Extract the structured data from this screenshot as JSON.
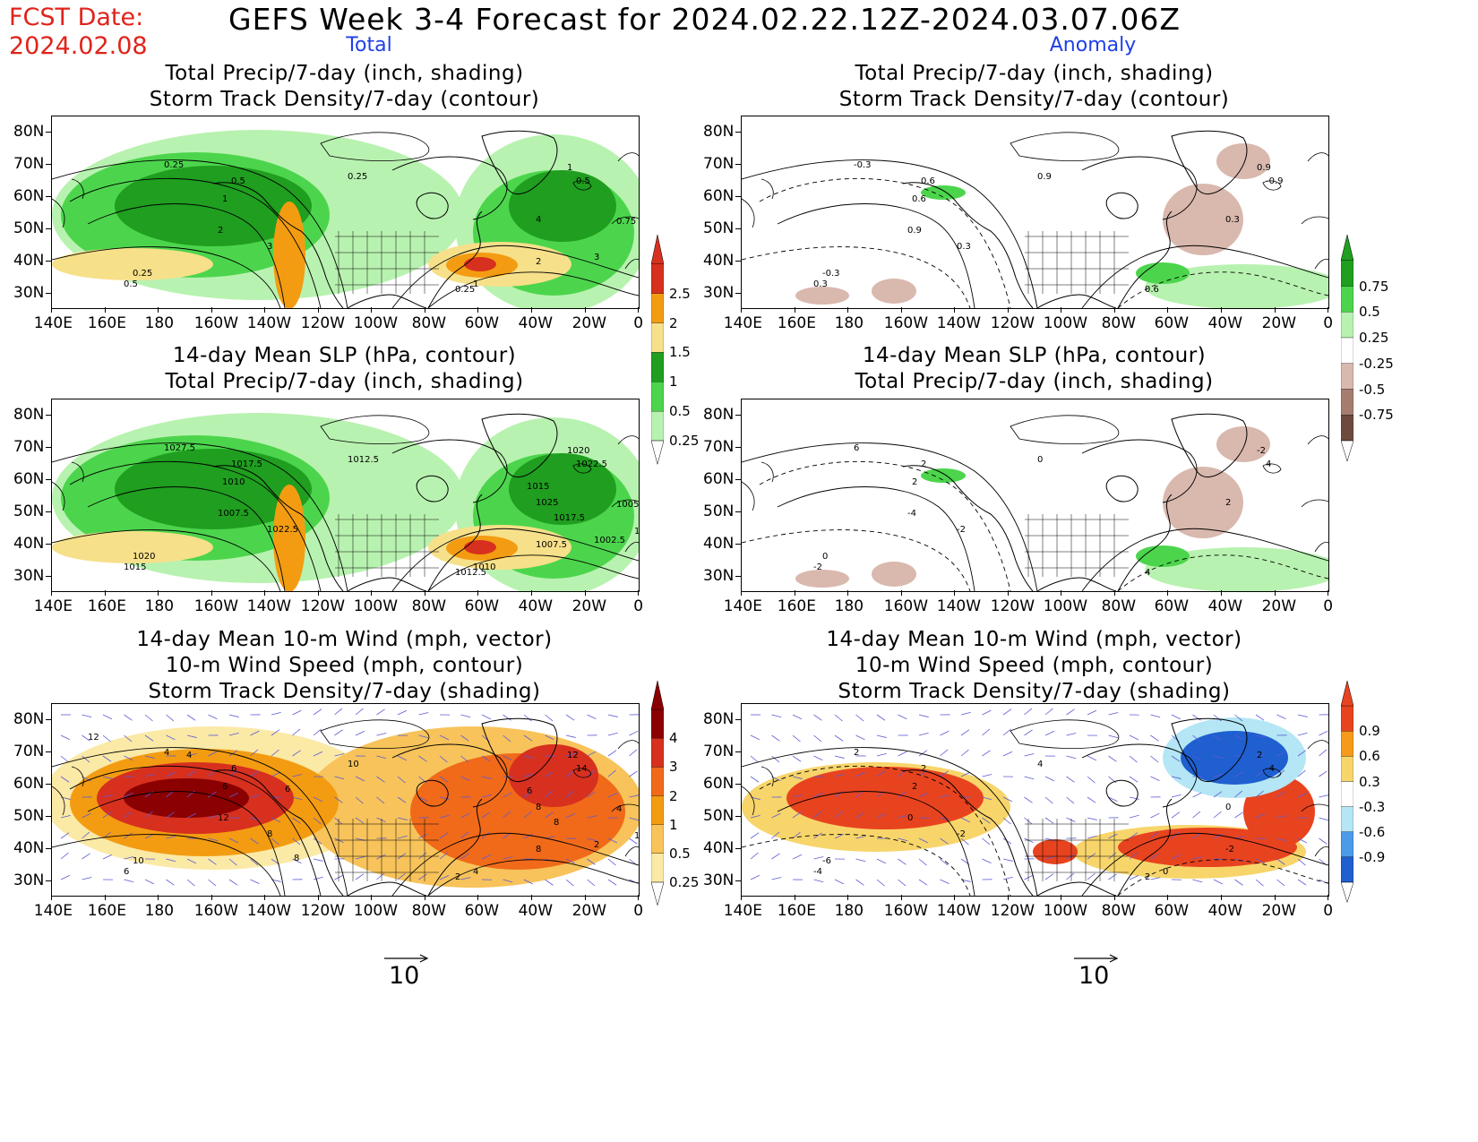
{
  "header": {
    "fcst_date_label": "FCST Date:",
    "fcst_date_value": "2024.02.08",
    "title": "GEFS Week 3-4 Forecast for 2024.02.22.12Z-2024.03.07.06Z",
    "col_left": "Total",
    "col_right": "Anomaly"
  },
  "panels": {
    "p1": {
      "line1": "Total Precip/7-day (inch, shading)",
      "line2": "Storm Track Density/7-day (contour)"
    },
    "p2": {
      "line1": "Total Precip/7-day (inch, shading)",
      "line2": "Storm Track Density/7-day (contour)"
    },
    "p3": {
      "line1": "14-day Mean SLP (hPa, contour)",
      "line2": "Total Precip/7-day (inch, shading)"
    },
    "p4": {
      "line1": "14-day Mean SLP (hPa, contour)",
      "line2": "Total Precip/7-day (inch, shading)"
    },
    "p5": {
      "line1": "14-day Mean 10-m Wind (mph, vector)",
      "line2": "10-m Wind Speed (mph, contour)",
      "line3": "Storm Track Density/7-day (shading)"
    },
    "p6": {
      "line1": "14-day Mean 10-m Wind (mph, vector)",
      "line2": "10-m Wind Speed (mph, contour)",
      "line3": "Storm Track Density/7-day (shading)"
    }
  },
  "axes": {
    "lat_labels": [
      "80N",
      "70N",
      "60N",
      "50N",
      "40N",
      "30N"
    ],
    "lon_labels": [
      "140E",
      "160E",
      "180",
      "160W",
      "140W",
      "120W",
      "100W",
      "80W",
      "60W",
      "40W",
      "20W",
      "0"
    ]
  },
  "colorbars": {
    "precip_total": {
      "labels": [
        "2.5",
        "2",
        "1.5",
        "1",
        "0.5",
        "0.25"
      ],
      "colors": [
        "#d7301f",
        "#f39c12",
        "#f7e08a",
        "#1f9e1f",
        "#4cd54c",
        "#b8f2b0"
      ]
    },
    "precip_anom": {
      "labels": [
        "0.75",
        "0.5",
        "0.25",
        "-0.25",
        "-0.5",
        "-0.75"
      ],
      "colors": [
        "#1f9e1f",
        "#4cd54c",
        "#b8f2b0",
        "#ffffff",
        "#d9b8ae",
        "#a67c6e",
        "#6e4a3e"
      ]
    },
    "storm_total": {
      "labels": [
        "4",
        "3",
        "2",
        "1",
        "0.5",
        "0.25"
      ],
      "colors": [
        "#8b0000",
        "#d7301f",
        "#f06a1a",
        "#f39c12",
        "#f7c35a",
        "#fbe9a6"
      ]
    },
    "storm_anom": {
      "labels": [
        "0.9",
        "0.6",
        "0.3",
        "-0.3",
        "-0.6",
        "-0.9"
      ],
      "colors": [
        "#e8431f",
        "#f59a1a",
        "#f7d56a",
        "#ffffff",
        "#b4e6f5",
        "#4b9be8",
        "#1f5fd0"
      ]
    }
  },
  "vector_ref": {
    "left": "10",
    "right": "10"
  },
  "contour_labels": {
    "p1": [
      "0.25",
      "0.5",
      "0.25",
      "1",
      "2",
      "3",
      "4",
      "1",
      "0.5",
      "0.25",
      "0.5",
      "0.25",
      "1",
      "2",
      "3",
      "0.75"
    ],
    "p2": [
      "-0.3",
      "0.6",
      "0.9",
      "0.6",
      "0.9",
      "0.3",
      "0.3",
      "0.9",
      "-0.9",
      "-0.3",
      "0.3",
      "0.6"
    ],
    "p3": [
      "1027.5",
      "1017.5",
      "1012.5",
      "1010",
      "1007.5",
      "1022.5",
      "1025",
      "1020",
      "1022.5",
      "1020",
      "1015",
      "1012.5",
      "1010",
      "1007.5",
      "1002.5",
      "1005",
      "1015",
      "1017.5",
      "1017.5"
    ],
    "p4": [
      "6",
      "2",
      "0",
      "2",
      "-4",
      "-2",
      "2",
      "-2",
      "4",
      "0",
      "-2",
      "4"
    ],
    "p5": [
      "4",
      "6",
      "10",
      "6",
      "12",
      "8",
      "8",
      "12",
      "14",
      "10",
      "6",
      "2",
      "4",
      "8",
      "2",
      "4",
      "6",
      "8",
      "10",
      "12",
      "4",
      "6",
      "8"
    ],
    "p6": [
      "2",
      "2",
      "4",
      "2",
      "0",
      "-2",
      "0",
      "2",
      "-4",
      "-6",
      "-4",
      "2",
      "0",
      "-2"
    ]
  }
}
